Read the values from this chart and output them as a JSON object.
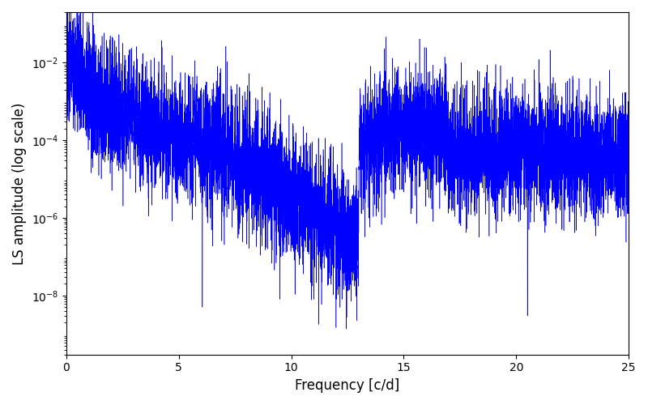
{
  "line_color": "#0000ff",
  "xlabel": "Frequency [c/d]",
  "ylabel": "LS amplitude (log scale)",
  "xlim": [
    0,
    25
  ],
  "ylim": [
    3e-10,
    0.2
  ],
  "freq_max": 25.0,
  "n_points": 8000,
  "background_color": "#ffffff",
  "linewidth": 0.4,
  "figsize": [
    8.0,
    5.0
  ],
  "dpi": 100,
  "seed": 137,
  "xticks": [
    0,
    5,
    10,
    15,
    20,
    25
  ],
  "yticks_log": [
    -8,
    -6,
    -4,
    -2
  ]
}
